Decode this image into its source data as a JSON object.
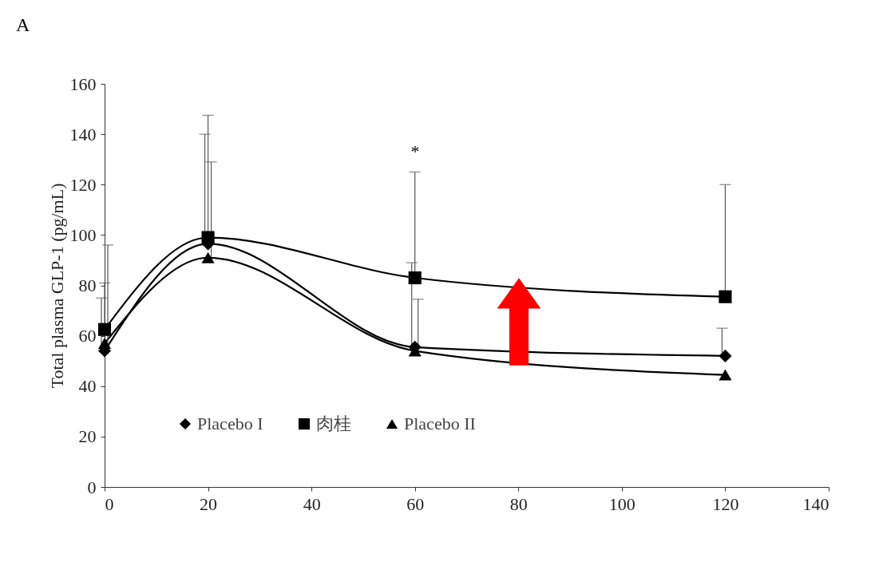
{
  "chart_data": {
    "type": "line",
    "title": "A",
    "ylabel": "Total plasma GLP-1 (pg/mL)",
    "xlim": [
      0,
      140
    ],
    "xticks": [
      0,
      20,
      40,
      60,
      80,
      100,
      120,
      140
    ],
    "ylim": [
      0,
      160
    ],
    "yticks": [
      0,
      20,
      40,
      60,
      80,
      100,
      120,
      140,
      160
    ],
    "grid": false,
    "legend": "bottom",
    "line_style": "solid",
    "series": [
      {
        "name": "Placebo I",
        "color": "#000000",
        "marker": "diamond",
        "x": [
          0,
          20,
          60,
          120
        ],
        "values": [
          54,
          96.5,
          55.5,
          52
        ],
        "errors": [
          [
            54,
            75
          ],
          [
            96.5,
            140
          ],
          [
            55.5,
            89
          ],
          [
            52,
            63
          ]
        ]
      },
      {
        "name": "肉桂",
        "color": "#000000",
        "marker": "square",
        "x": [
          0,
          20,
          60,
          120
        ],
        "values": [
          62.5,
          99,
          83,
          75.5
        ],
        "errors": [
          [
            62.5,
            81
          ],
          [
            99,
            147.5
          ],
          [
            83,
            125
          ],
          [
            75.5,
            120
          ]
        ]
      },
      {
        "name": "Placebo II",
        "color": "#000000",
        "marker": "triangle",
        "x": [
          0,
          20,
          60,
          120
        ],
        "values": [
          57,
          91,
          54,
          44.5
        ],
        "errors": [
          [
            57,
            96
          ],
          [
            91,
            129
          ],
          [
            54,
            74.5
          ],
          null
        ]
      }
    ],
    "annotations": [
      "*"
    ]
  }
}
